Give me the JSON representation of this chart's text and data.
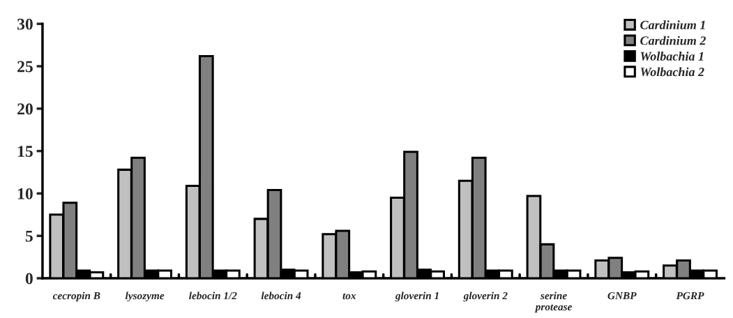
{
  "chart_data": {
    "type": "bar",
    "categories": [
      "cecropin B",
      "lysozyme",
      "lebocin 1/2",
      "lebocin 4",
      "tox",
      "gloverin 1",
      "gloverin 2",
      "serine\nprotease",
      "GNBP",
      "PGRP"
    ],
    "series": [
      {
        "name": "Cardinium 1",
        "color": "#c0c0c0",
        "values": [
          7.5,
          12.8,
          10.9,
          7.0,
          5.2,
          9.5,
          11.5,
          9.7,
          2.1,
          1.5
        ]
      },
      {
        "name": "Cardinium 2",
        "color": "#808080",
        "values": [
          8.9,
          14.2,
          26.2,
          10.4,
          5.6,
          14.9,
          14.2,
          4.0,
          2.4,
          2.1
        ]
      },
      {
        "name": "Wolbachia 1",
        "color": "#000000",
        "values": [
          0.9,
          0.9,
          0.9,
          1.0,
          0.7,
          1.0,
          0.9,
          0.9,
          0.7,
          0.9
        ]
      },
      {
        "name": "Wolbachia 2",
        "color": "#ffffff",
        "values": [
          0.7,
          0.9,
          0.9,
          0.9,
          0.8,
          0.8,
          0.9,
          0.9,
          0.8,
          0.9
        ]
      }
    ],
    "ylim": [
      0,
      30
    ],
    "yticks": [
      0,
      5,
      10,
      15,
      20,
      25,
      30
    ],
    "grid": false,
    "legend": "top right"
  }
}
